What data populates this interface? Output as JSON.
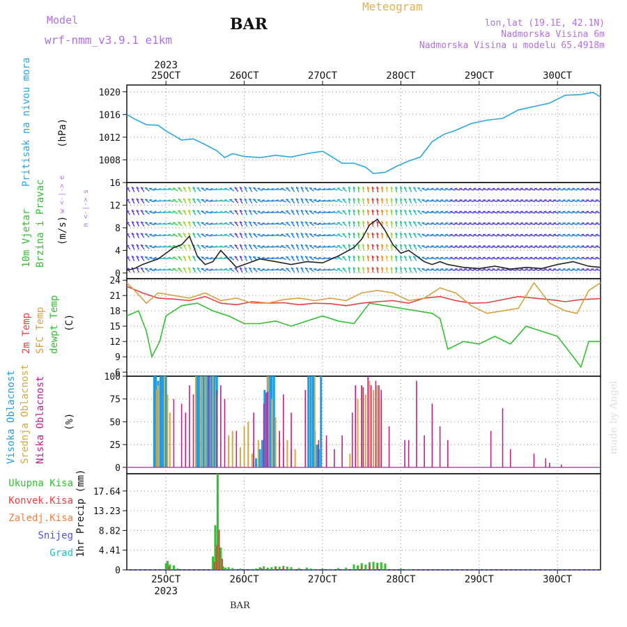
{
  "header": {
    "model_label": "Model",
    "model_name": "wrf-nmm_v3.9.1  e1km",
    "title": "BAR",
    "meteogram": "Meteogram",
    "lonlat": "lon,lat (19.1E, 42.1N)",
    "altitude": "Nadmorska Visina 6m",
    "model_altitude": "Nadmorska Visina u modelu 65.4918m"
  },
  "footer": {
    "station": "BAR",
    "credit": "made by Angel"
  },
  "colors": {
    "pressure": "#2aa7e0",
    "temp2m": "#e84040",
    "sfc": "#d8a040",
    "dewpt": "#30c030",
    "high_cloud": "#1e9ee0",
    "mid_cloud": "#d8a840",
    "low_cloud": "#c0208a",
    "precip_total": "#30c030",
    "precip_conv": "#e84040",
    "wind_purple": "#8020d0",
    "wind_cyan": "#20b0d0"
  },
  "time_axis": {
    "year": "2023",
    "ticks": [
      {
        "day": 25,
        "label": "25OCT"
      },
      {
        "day": 26,
        "label": "26OCT"
      },
      {
        "day": 27,
        "label": "27OCT"
      },
      {
        "day": 28,
        "label": "28OCT"
      },
      {
        "day": 29,
        "label": "29OCT"
      },
      {
        "day": 30,
        "label": "30OCT"
      }
    ],
    "range": [
      24.5,
      30.55
    ]
  },
  "chart_data": [
    {
      "type": "line",
      "panel": "pressure",
      "label_name": "Pritisak na nivou mora",
      "label_unit": "(hPa)",
      "yticks": [
        "1008",
        "1012",
        "1016",
        "1020"
      ],
      "ylim": [
        1004,
        1021.2
      ],
      "series": [
        {
          "name": "Pritisak na nivou mora",
          "color_key": "pressure",
          "x": [
            24.5,
            24.6,
            24.75,
            24.9,
            25.0,
            25.1,
            25.2,
            25.35,
            25.5,
            25.65,
            25.75,
            25.85,
            26.0,
            26.2,
            26.4,
            26.6,
            26.8,
            27.0,
            27.1,
            27.25,
            27.4,
            27.55,
            27.65,
            27.8,
            27.95,
            28.1,
            28.25,
            28.4,
            28.55,
            28.7,
            28.9,
            29.1,
            29.3,
            29.5,
            29.7,
            29.9,
            30.1,
            30.3,
            30.45,
            30.55
          ],
          "y": [
            1016.0,
            1015.2,
            1014.2,
            1014.1,
            1013.1,
            1012.3,
            1011.5,
            1011.7,
            1010.7,
            1009.6,
            1008.4,
            1009.1,
            1008.6,
            1008.4,
            1008.8,
            1008.5,
            1009.1,
            1009.5,
            1008.7,
            1007.4,
            1007.4,
            1006.7,
            1005.6,
            1005.8,
            1006.9,
            1007.8,
            1008.5,
            1011.2,
            1012.5,
            1013.2,
            1014.4,
            1015.0,
            1015.3,
            1016.8,
            1017.4,
            1018.0,
            1019.4,
            1019.5,
            1019.9,
            1019.1
          ]
        }
      ]
    },
    {
      "type": "line",
      "panel": "wind",
      "label_name": "10m Vjetar",
      "label_name2": "Brzina i Pravac",
      "label_unit": "(m/s)",
      "legend_glyphs": "w <-|-> e",
      "legend_glyphs2": "n <-|-> s",
      "yticks": [
        "0",
        "4",
        "8",
        "12",
        "16"
      ],
      "ylim": [
        -1,
        16
      ],
      "series": [
        {
          "name": "Brzina",
          "color": "#222222",
          "x": [
            24.5,
            24.6,
            24.7,
            24.8,
            24.9,
            25.0,
            25.1,
            25.2,
            25.3,
            25.4,
            25.5,
            25.6,
            25.7,
            25.8,
            25.9,
            26.0,
            26.2,
            26.4,
            26.6,
            26.8,
            27.0,
            27.2,
            27.4,
            27.5,
            27.6,
            27.7,
            27.8,
            27.9,
            28.0,
            28.1,
            28.2,
            28.3,
            28.4,
            28.5,
            28.6,
            28.8,
            29.0,
            29.2,
            29.4,
            29.6,
            29.8,
            30.0,
            30.2,
            30.4,
            30.55
          ],
          "y": [
            0.5,
            0.8,
            1.5,
            2.0,
            2.5,
            3.5,
            4.5,
            5.0,
            6.5,
            3.0,
            1.5,
            2.0,
            4.0,
            2.5,
            1.0,
            1.5,
            2.5,
            2.0,
            1.5,
            2.0,
            1.8,
            3.0,
            4.5,
            6.0,
            8.5,
            9.5,
            7.5,
            5.0,
            3.5,
            4.0,
            3.0,
            2.0,
            1.5,
            2.0,
            1.5,
            1.0,
            0.8,
            1.2,
            0.7,
            1.0,
            0.8,
            1.5,
            2.0,
            1.2,
            1.0
          ]
        }
      ]
    },
    {
      "type": "line",
      "panel": "temperature",
      "label_name": "2m Temp",
      "label_name2": "SFC Temp",
      "label_name3": "dewpt Temp",
      "label_unit": "(C)",
      "yticks": [
        "6",
        "9",
        "12",
        "15",
        "18",
        "21",
        "24"
      ],
      "ylim": [
        5.2,
        24.3
      ],
      "series": [
        {
          "name": "2m Temp",
          "color_key": "temp2m",
          "x": [
            24.5,
            24.7,
            24.9,
            25.1,
            25.3,
            25.5,
            25.7,
            25.9,
            26.1,
            26.3,
            26.5,
            26.7,
            26.9,
            27.1,
            27.3,
            27.5,
            27.7,
            27.9,
            28.1,
            28.3,
            28.5,
            28.7,
            28.9,
            29.1,
            29.3,
            29.5,
            29.7,
            29.9,
            30.1,
            30.3,
            30.55
          ],
          "y": [
            22.8,
            21.5,
            20.5,
            20.3,
            20.0,
            20.8,
            19.5,
            19.2,
            19.8,
            19.5,
            19.6,
            19.2,
            19.5,
            19.4,
            19.0,
            19.5,
            19.8,
            20.0,
            19.5,
            20.5,
            20.8,
            20.0,
            19.5,
            19.6,
            20.2,
            20.8,
            20.5,
            20.2,
            19.8,
            20.2,
            20.4
          ]
        },
        {
          "name": "SFC Temp",
          "color_key": "sfc",
          "x": [
            24.5,
            24.6,
            24.75,
            24.9,
            25.1,
            25.3,
            25.5,
            25.7,
            25.9,
            26.1,
            26.3,
            26.5,
            26.7,
            26.9,
            27.1,
            27.3,
            27.5,
            27.7,
            27.9,
            28.1,
            28.3,
            28.5,
            28.7,
            28.9,
            29.1,
            29.3,
            29.5,
            29.7,
            29.9,
            30.1,
            30.25,
            30.4,
            30.55
          ],
          "y": [
            23.5,
            22.0,
            19.5,
            21.5,
            21.0,
            20.5,
            21.5,
            20.0,
            20.5,
            19.5,
            19.5,
            20.2,
            20.5,
            20.0,
            20.5,
            20.0,
            21.5,
            22.0,
            21.5,
            20.0,
            20.5,
            22.5,
            21.5,
            19.0,
            17.5,
            18.0,
            18.5,
            23.5,
            19.5,
            18.0,
            17.5,
            22.0,
            23.5
          ]
        },
        {
          "name": "dewpt Temp",
          "color_key": "dewpt",
          "x": [
            24.5,
            24.65,
            24.75,
            24.82,
            24.92,
            25.0,
            25.2,
            25.4,
            25.6,
            25.8,
            26.0,
            26.2,
            26.4,
            26.6,
            26.8,
            27.0,
            27.2,
            27.4,
            27.6,
            27.8,
            28.0,
            28.2,
            28.4,
            28.5,
            28.6,
            28.8,
            29.0,
            29.2,
            29.4,
            29.6,
            29.8,
            30.0,
            30.2,
            30.3,
            30.4,
            30.55
          ],
          "y": [
            17.0,
            18.0,
            14.0,
            9.0,
            12.0,
            17.0,
            19.0,
            19.5,
            18.0,
            17.0,
            15.5,
            15.5,
            16.0,
            15.0,
            16.0,
            17.0,
            16.0,
            15.5,
            19.5,
            19.0,
            18.5,
            18.0,
            17.5,
            16.5,
            10.5,
            12.0,
            11.5,
            13.0,
            11.5,
            15.0,
            14.0,
            13.0,
            9.0,
            7.0,
            12.0,
            12.0
          ]
        }
      ]
    },
    {
      "type": "bar",
      "panel": "cloud",
      "label_name": "Visoka Oblacnost",
      "label_name2": "Srednja Oblacnost",
      "label_name3": "Niska Oblacnost",
      "label_unit": "(%)",
      "yticks": [
        "0",
        "25",
        "50",
        "75",
        "100"
      ],
      "ylim": [
        -7,
        100
      ],
      "series": [
        {
          "name": "Visoka Oblacnost",
          "color_key": "high_cloud",
          "x": [
            24.85,
            24.87,
            24.9,
            24.93,
            24.95,
            24.97,
            25.0,
            25.4,
            25.42,
            25.45,
            25.48,
            25.5,
            25.53,
            25.55,
            25.58,
            25.6,
            25.62,
            25.65,
            26.15,
            26.2,
            26.23,
            26.26,
            26.3,
            26.33,
            26.35,
            26.38,
            26.82,
            26.85,
            26.88,
            26.9,
            26.93,
            26.95,
            26.98
          ],
          "y": [
            100,
            100,
            95,
            100,
            100,
            100,
            100,
            100,
            100,
            100,
            100,
            100,
            100,
            100,
            100,
            100,
            100,
            100,
            10,
            20,
            30,
            85,
            100,
            100,
            100,
            100,
            100,
            100,
            100,
            40,
            25,
            20,
            100
          ]
        },
        {
          "name": "Srednja Oblacnost",
          "color_key": "mid_cloud",
          "x": [
            24.88,
            24.9,
            24.98,
            25.02,
            25.05,
            25.38,
            25.45,
            25.5,
            25.55,
            25.6,
            25.65,
            25.8,
            25.85,
            25.95,
            26.0,
            26.05,
            26.1,
            26.12,
            26.18,
            26.3,
            26.35,
            26.4,
            26.45,
            26.5,
            26.55,
            26.6,
            26.65,
            26.9,
            27.05,
            27.35,
            27.45,
            27.5,
            27.55,
            27.6,
            27.65,
            27.7,
            27.75
          ],
          "y": [
            85,
            90,
            100,
            80,
            60,
            100,
            100,
            100,
            85,
            100,
            80,
            35,
            40,
            22,
            45,
            50,
            15,
            20,
            30,
            100,
            75,
            55,
            30,
            22,
            30,
            20,
            20,
            100,
            30,
            15,
            75,
            90,
            80,
            95,
            85,
            90,
            75
          ]
        },
        {
          "name": "Niska Oblacnost",
          "color_key": "low_cloud",
          "x": [
            25.1,
            25.2,
            25.25,
            25.3,
            25.35,
            25.55,
            25.65,
            25.7,
            25.75,
            25.9,
            26.12,
            26.25,
            26.28,
            26.3,
            26.45,
            26.5,
            26.6,
            26.78,
            26.95,
            27.05,
            27.15,
            27.25,
            27.38,
            27.42,
            27.5,
            27.52,
            27.58,
            27.62,
            27.68,
            27.72,
            27.75,
            27.85,
            28.05,
            28.1,
            28.2,
            28.3,
            28.4,
            28.5,
            28.6,
            29.15,
            29.3,
            29.4,
            29.7,
            29.85,
            29.9,
            30.05
          ],
          "y": [
            75,
            70,
            60,
            90,
            80,
            100,
            85,
            90,
            75,
            40,
            60,
            70,
            82,
            83,
            40,
            80,
            60,
            85,
            30,
            35,
            20,
            35,
            60,
            90,
            90,
            88,
            100,
            90,
            95,
            90,
            85,
            45,
            30,
            30,
            95,
            35,
            70,
            45,
            30,
            40,
            65,
            20,
            15,
            10,
            5,
            3
          ]
        }
      ]
    },
    {
      "type": "bar",
      "panel": "precip",
      "legend": [
        "Ukupna Kisa",
        "Konvek.Kisa",
        "Zaledj.Kisa",
        "Snijeg",
        "Grad"
      ],
      "legend_colors": [
        "#30c030",
        "#e84040",
        "#f08040",
        "#5050e0",
        "#20c0c0"
      ],
      "label_unit": "1hr Precip (mm)",
      "yticks": [
        "0",
        "4.41",
        "8.82",
        "13.23",
        "17.64"
      ],
      "ylim": [
        0,
        21.5
      ],
      "series": [
        {
          "name": "Ukupna Kisa",
          "color_key": "precip_total",
          "x": [
            25.0,
            25.02,
            25.05,
            25.1,
            25.15,
            25.6,
            25.63,
            25.66,
            25.7,
            25.73,
            25.76,
            25.8,
            25.85,
            25.95,
            26.1,
            26.15,
            26.2,
            26.25,
            26.3,
            26.35,
            26.4,
            26.45,
            26.5,
            26.55,
            26.6,
            26.7,
            26.8,
            26.85,
            26.9,
            27.0,
            27.1,
            27.2,
            27.3,
            27.4,
            27.45,
            27.5,
            27.55,
            27.6,
            27.65,
            27.7,
            27.75,
            27.8,
            28.0,
            28.1
          ],
          "y": [
            1.5,
            2.0,
            1.2,
            1.0,
            0.3,
            3.0,
            10.0,
            21.5,
            5.0,
            0.8,
            0.5,
            0.6,
            0.4,
            0.3,
            0.2,
            0.3,
            0.6,
            0.8,
            0.5,
            0.6,
            0.8,
            0.7,
            0.9,
            0.7,
            0.6,
            0.4,
            0.5,
            0.3,
            0.2,
            0.3,
            0.2,
            0.4,
            0.5,
            1.2,
            1.0,
            1.5,
            1.2,
            1.7,
            1.8,
            1.6,
            1.7,
            1.4,
            0.3,
            0.2
          ]
        },
        {
          "name": "Konvek.Kisa",
          "color_key": "precip_conv",
          "x": [
            25.04,
            25.62,
            25.65,
            25.68,
            25.72,
            26.22,
            26.4,
            26.5,
            27.5,
            27.6,
            27.7
          ],
          "y": [
            0.8,
            1.8,
            5.5,
            9.0,
            2.5,
            0.4,
            0.5,
            0.5,
            0.8,
            1.0,
            0.9
          ]
        }
      ]
    }
  ]
}
